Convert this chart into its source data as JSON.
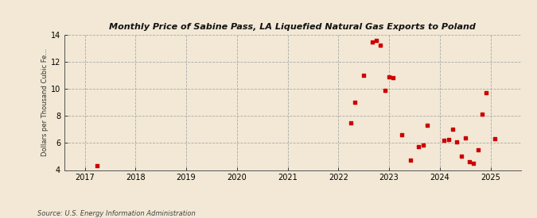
{
  "title": "Monthly Price of Sabine Pass, LA Liquefied Natural Gas Exports to Poland",
  "ylabel": "Dollars per Thousand Cubic Fe...",
  "source": "Source: U.S. Energy Information Administration",
  "background_color": "#f2e8d5",
  "plot_background_color": "#f2e8d5",
  "marker_color": "#cc0000",
  "marker_size": 7,
  "xlim": [
    2016.6,
    2025.6
  ],
  "ylim": [
    4,
    14
  ],
  "yticks": [
    4,
    6,
    8,
    10,
    12,
    14
  ],
  "xticks": [
    2017,
    2018,
    2019,
    2020,
    2021,
    2022,
    2023,
    2024,
    2025
  ],
  "data_points": [
    [
      2017.25,
      4.3
    ],
    [
      2022.25,
      7.5
    ],
    [
      2022.33,
      9.0
    ],
    [
      2022.5,
      11.0
    ],
    [
      2022.67,
      13.5
    ],
    [
      2022.75,
      13.6
    ],
    [
      2022.83,
      13.25
    ],
    [
      2022.92,
      9.9
    ],
    [
      2023.0,
      10.9
    ],
    [
      2023.08,
      10.85
    ],
    [
      2023.25,
      6.6
    ],
    [
      2023.42,
      4.75
    ],
    [
      2023.58,
      5.75
    ],
    [
      2023.67,
      5.85
    ],
    [
      2023.75,
      7.3
    ],
    [
      2024.08,
      6.2
    ],
    [
      2024.17,
      6.25
    ],
    [
      2024.25,
      7.0
    ],
    [
      2024.33,
      6.1
    ],
    [
      2024.42,
      5.0
    ],
    [
      2024.5,
      6.35
    ],
    [
      2024.58,
      4.6
    ],
    [
      2024.67,
      4.5
    ],
    [
      2024.75,
      5.5
    ],
    [
      2024.83,
      8.15
    ],
    [
      2024.92,
      9.7
    ],
    [
      2025.08,
      6.3
    ]
  ]
}
